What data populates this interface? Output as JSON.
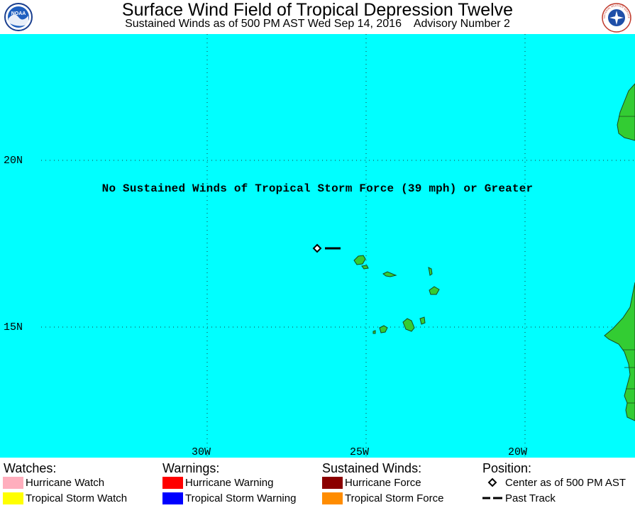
{
  "header": {
    "title": "Surface Wind Field of Tropical Depression Twelve",
    "subtitle": "Sustained Winds as of 500 PM AST Wed Sep 14, 2016    Advisory Number 2",
    "logos": {
      "noaa": {
        "name": "noaa-logo",
        "text": "NOAA"
      },
      "nws": {
        "name": "nws-logo",
        "text": "NATIONAL WEATHER SERVICE"
      }
    }
  },
  "map": {
    "ocean_color": "#00ffff",
    "land_color": "#33cc33",
    "message": "No Sustained Winds of Tropical Storm Force (39 mph) or Greater",
    "lat_labels": [
      "20N",
      "15N"
    ],
    "lon_labels": [
      "30W",
      "25W",
      "20W"
    ],
    "storm": {
      "center_icon": "open-diamond-icon",
      "track_icon": "dash-line-icon"
    }
  },
  "legend": {
    "watches": {
      "heading": "Watches:",
      "items": [
        {
          "label": "Hurricane Watch",
          "color": "#ffaebd"
        },
        {
          "label": "Tropical Storm Watch",
          "color": "#ffff00"
        }
      ]
    },
    "warnings": {
      "heading": "Warnings:",
      "items": [
        {
          "label": "Hurricane Warning",
          "color": "#ff0000"
        },
        {
          "label": "Tropical Storm Warning",
          "color": "#0000ff"
        }
      ]
    },
    "winds": {
      "heading": "Sustained Winds:",
      "items": [
        {
          "label": "Hurricane Force",
          "color": "#8b0000"
        },
        {
          "label": "Tropical Storm Force",
          "color": "#ff8c00"
        }
      ]
    },
    "position": {
      "heading": "Position:",
      "items": [
        {
          "label": "Center as of 500 PM AST",
          "icon": "open-diamond-icon"
        },
        {
          "label": "Past Track",
          "icon": "dash-line-icon"
        }
      ]
    }
  }
}
